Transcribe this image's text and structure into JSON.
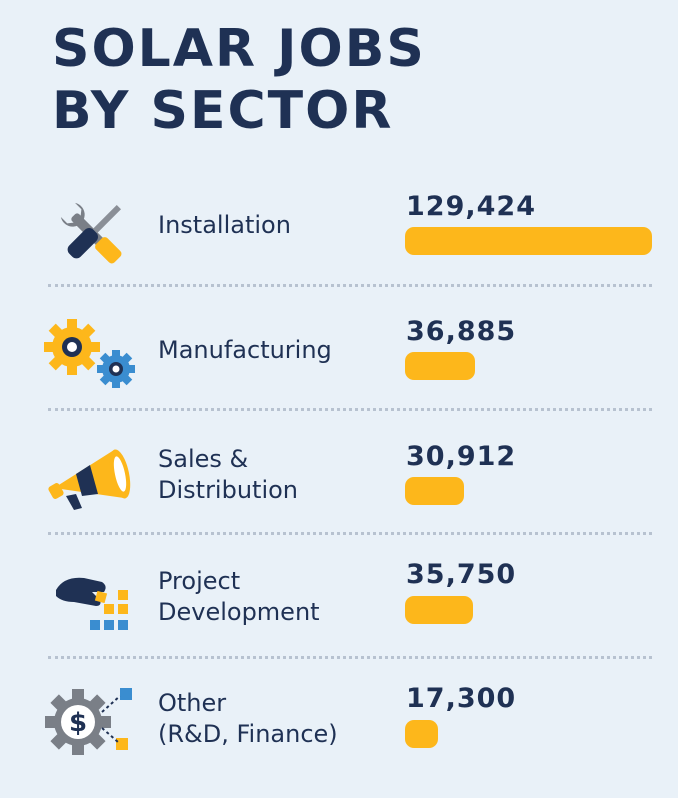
{
  "title_line1": "SOLAR JOBS",
  "title_line2": "BY SECTOR",
  "colors": {
    "bar": "#fdb71b",
    "text": "#1f3154",
    "background": "#e9f1f8",
    "blue": "#3a8dd0",
    "gray": "#7a7f87"
  },
  "chart_data": {
    "type": "bar",
    "orientation": "horizontal",
    "categories": [
      "Installation",
      "Manufacturing",
      "Sales & Distribution",
      "Project Development",
      "Other (R&D, Finance)"
    ],
    "values": [
      129424,
      36885,
      30912,
      35750,
      17300
    ],
    "value_labels": [
      "129,424",
      "36,885",
      "30,912",
      "35,750",
      "17,300"
    ],
    "label_lines": [
      [
        "Installation"
      ],
      [
        "Manufacturing"
      ],
      [
        "Sales &",
        "Distribution"
      ],
      [
        "Project",
        "Development"
      ],
      [
        "Other",
        "(R&D, Finance)"
      ]
    ],
    "icons": [
      "tools-icon",
      "gears-icon",
      "megaphone-icon",
      "hand-blocks-icon",
      "gear-dollar-icon"
    ],
    "xlim": [
      0,
      129424
    ]
  }
}
